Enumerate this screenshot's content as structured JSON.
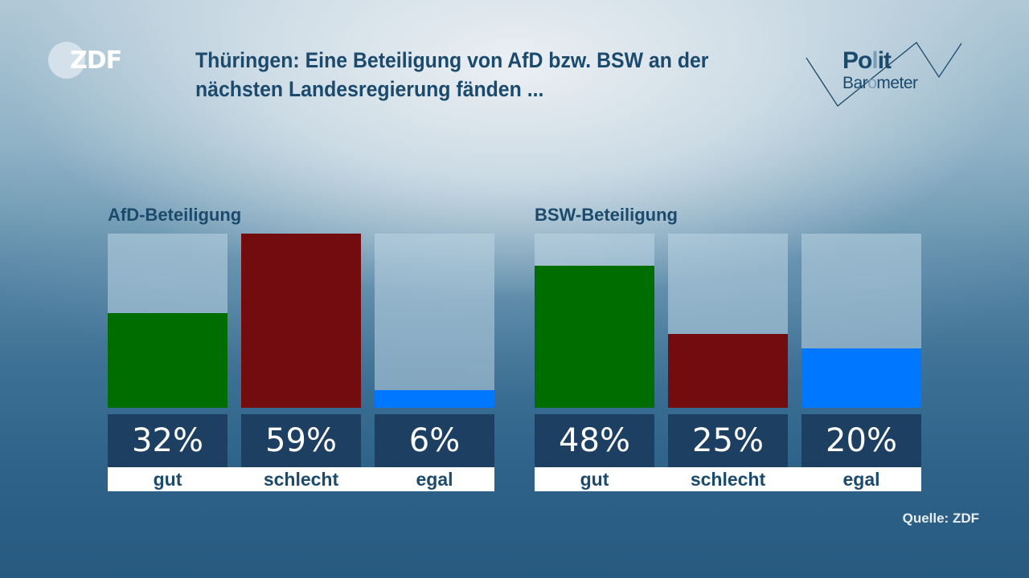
{
  "branding": {
    "broadcaster_logo": "ZDF",
    "show_logo_line1_a": "Po",
    "show_logo_line1_b": "l",
    "show_logo_line1_c": "it",
    "show_logo_line2_a": "Bar",
    "show_logo_line2_b": "o",
    "show_logo_line2_c": "meter"
  },
  "source": "Quelle: ZDF",
  "colors": {
    "gut": "#006d00",
    "schlecht": "#720c0e",
    "egal": "#0077ff",
    "value_box": "#1d3f62",
    "text_dark": "#1b4a6c"
  },
  "chart_data": {
    "type": "bar",
    "title": "Thüringen: Eine Beteiligung von AfD bzw. BSW an der nächsten Landesregierung fänden ...",
    "xlabel": "",
    "ylabel": "",
    "ylim": [
      0,
      59
    ],
    "grid": false,
    "categories": [
      "gut",
      "schlecht",
      "egal"
    ],
    "series": [
      {
        "name": "AfD-Beteiligung",
        "values": [
          32,
          59,
          6
        ],
        "labels": [
          "32%",
          "59%",
          "6%"
        ]
      },
      {
        "name": "BSW-Beteiligung",
        "values": [
          48,
          25,
          20
        ],
        "labels": [
          "48%",
          "25%",
          "20%"
        ]
      }
    ]
  }
}
